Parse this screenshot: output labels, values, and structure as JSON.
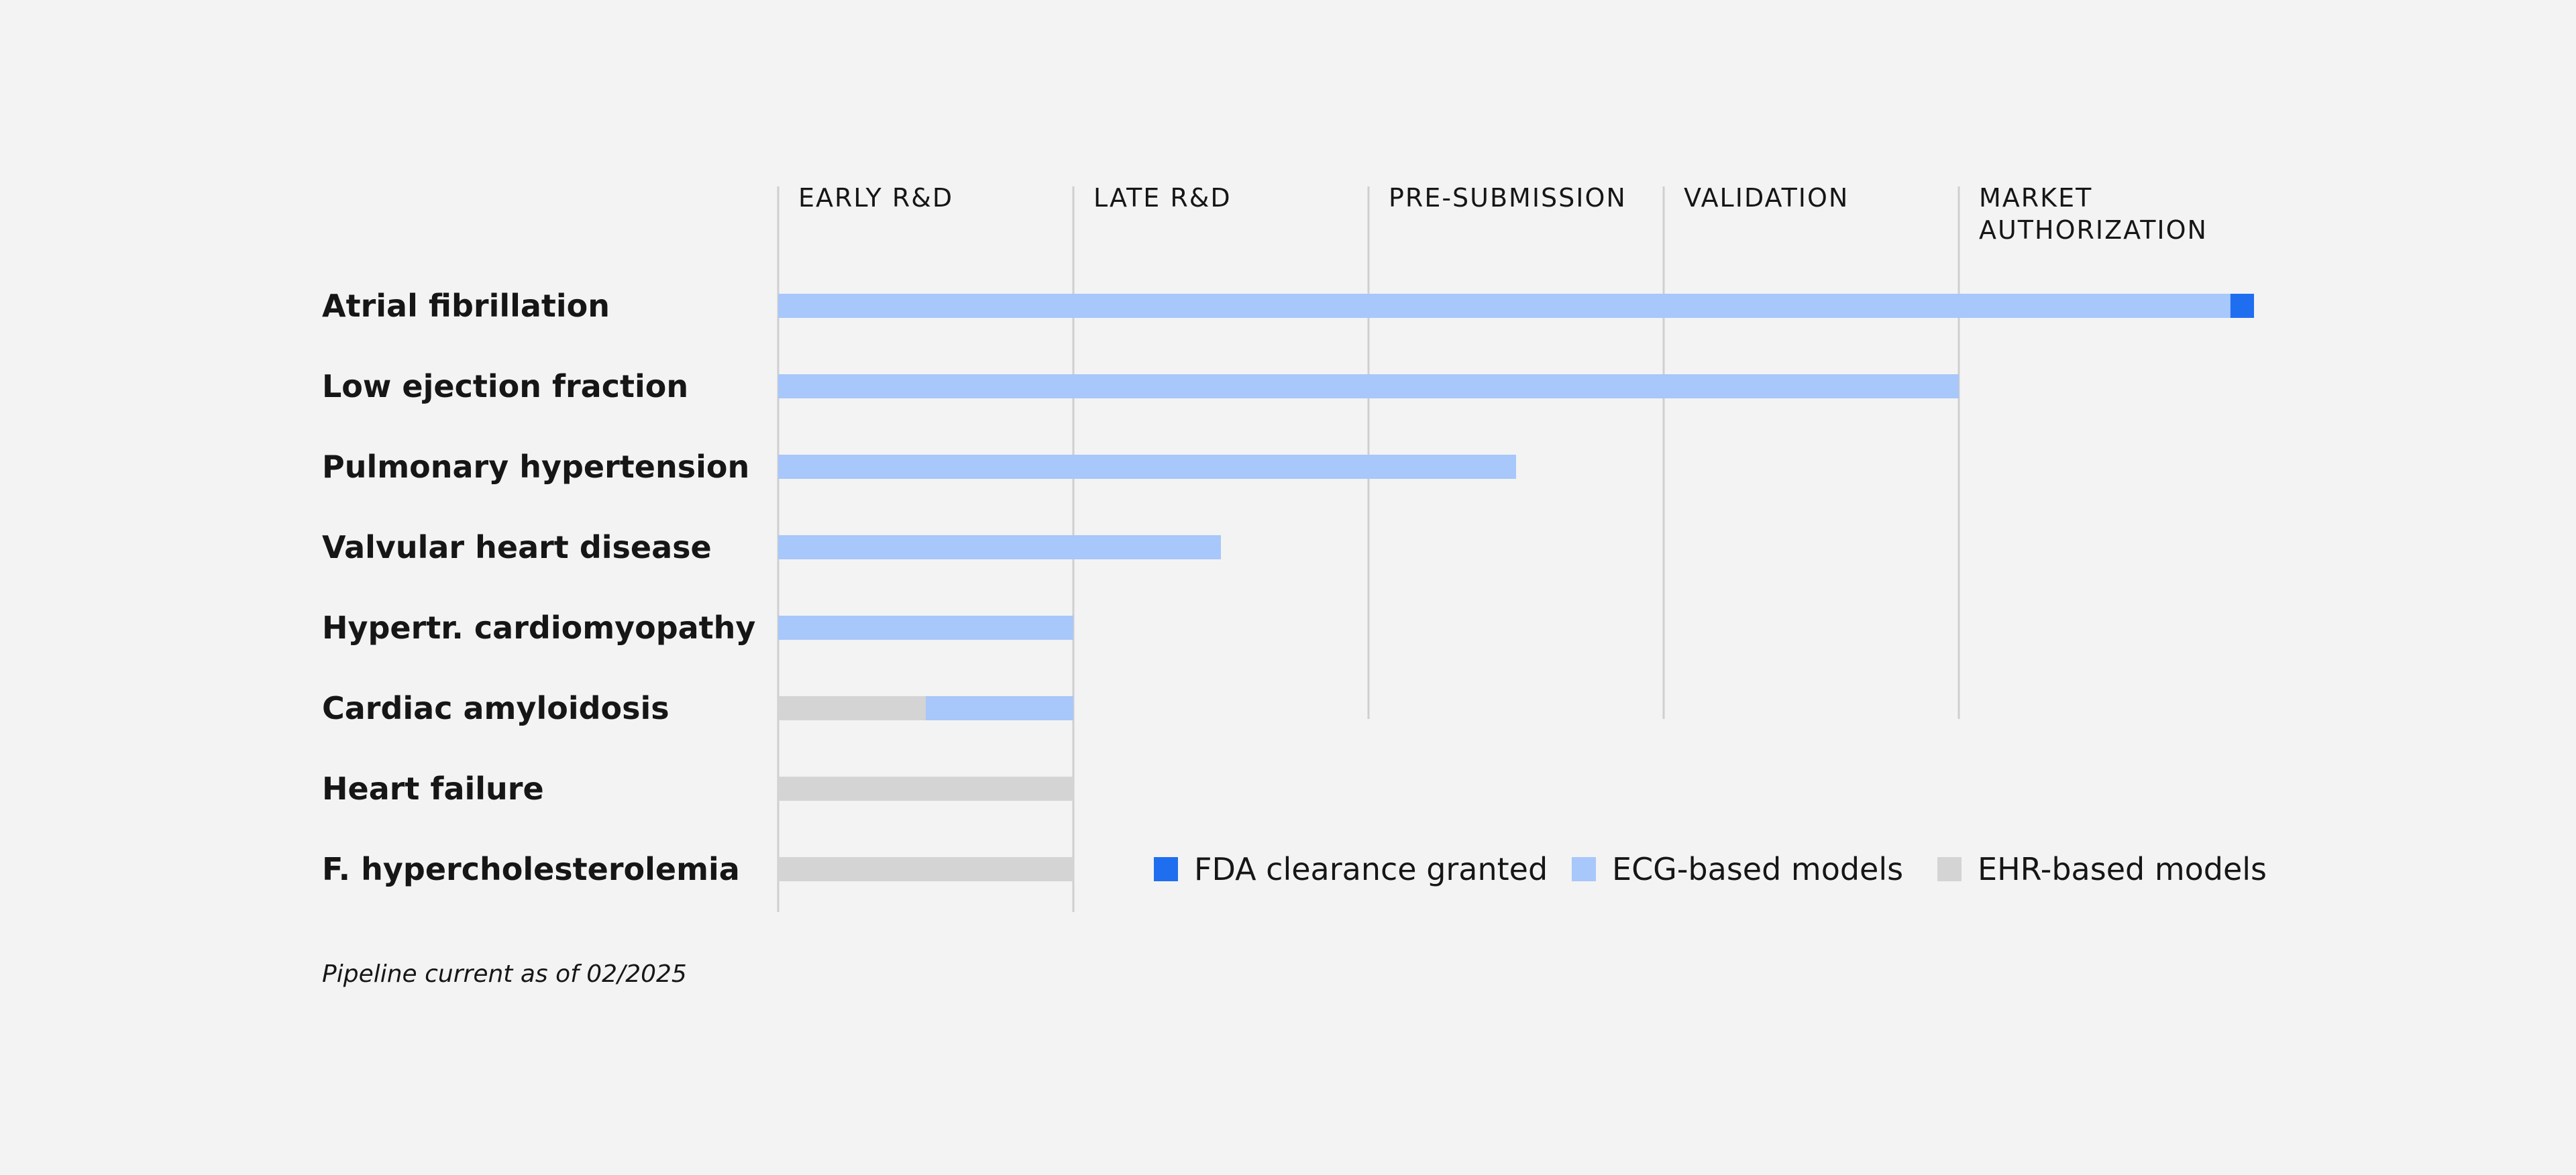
{
  "chart_data": {
    "type": "bar",
    "stages": [
      "EARLY R&D",
      "LATE R&D",
      "PRE-SUBMISSION",
      "VALIDATION",
      "MARKET AUTHORIZATION"
    ],
    "stage_label_lines": [
      [
        "EARLY R&D"
      ],
      [
        "LATE R&D"
      ],
      [
        "PRE-SUBMISSION"
      ],
      [
        "VALIDATION"
      ],
      [
        "MARKET",
        "AUTHORIZATION"
      ]
    ],
    "x_unit": "pipeline stage (0 = start of Early R&D, 5 = end of Market Authorization)",
    "xlim": [
      0,
      5
    ],
    "rows": [
      {
        "label": "Atrial fibrillation",
        "segments": [
          {
            "series": "ecg",
            "start": 0,
            "end": 4.92
          },
          {
            "series": "fda",
            "start": 4.92,
            "end": 5.0
          }
        ]
      },
      {
        "label": "Low ejection fraction",
        "segments": [
          {
            "series": "ecg",
            "start": 0,
            "end": 4.0
          }
        ]
      },
      {
        "label": "Pulmonary hypertension",
        "segments": [
          {
            "series": "ecg",
            "start": 0,
            "end": 2.5
          }
        ]
      },
      {
        "label": "Valvular heart disease",
        "segments": [
          {
            "series": "ecg",
            "start": 0,
            "end": 1.5
          }
        ]
      },
      {
        "label": "Hypertr. cardiomyopathy",
        "segments": [
          {
            "series": "ecg",
            "start": 0,
            "end": 1.0
          }
        ]
      },
      {
        "label": "Cardiac amyloidosis",
        "segments": [
          {
            "series": "ehr",
            "start": 0,
            "end": 0.5
          },
          {
            "series": "ecg",
            "start": 0.5,
            "end": 1.0
          }
        ]
      },
      {
        "label": "Heart failure",
        "segments": [
          {
            "series": "ehr",
            "start": 0,
            "end": 1.0
          }
        ]
      },
      {
        "label": "F. hypercholesterolemia",
        "segments": [
          {
            "series": "ehr",
            "start": 0,
            "end": 1.0
          }
        ]
      }
    ],
    "series": [
      {
        "key": "fda",
        "name": "FDA clearance granted",
        "color": "#1f6ef0"
      },
      {
        "key": "ecg",
        "name": "ECG-based models",
        "color": "#a8c7fa"
      },
      {
        "key": "ehr",
        "name": "EHR-based models",
        "color": "#d4d4d4"
      }
    ],
    "grid": true,
    "legend_position": "bottom-right",
    "footnote": "Pipeline current as of 02/2025"
  }
}
